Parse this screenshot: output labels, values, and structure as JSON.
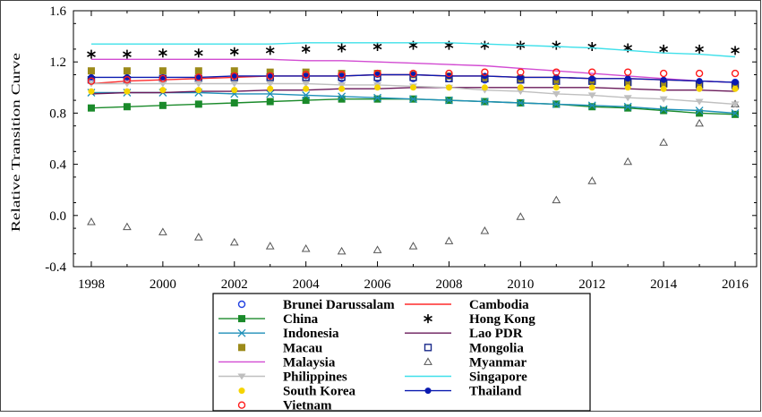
{
  "chart_data": {
    "type": "line",
    "title": "",
    "xlabel": "",
    "ylabel": "Relative Transition Curve",
    "xlim": [
      1997.5,
      2016.6
    ],
    "ylim": [
      -0.4,
      1.6
    ],
    "x_ticks": [
      "1998",
      "2000",
      "2002",
      "2004",
      "2006",
      "2008",
      "2010",
      "2012",
      "2014",
      "2016"
    ],
    "y_ticks": [
      "-0.4",
      "0.0",
      "0.4",
      "0.8",
      "1.2",
      "1.6"
    ],
    "grid": false,
    "legend_position": "bottom",
    "x": [
      1998,
      1999,
      2000,
      2001,
      2002,
      2003,
      2004,
      2005,
      2006,
      2007,
      2008,
      2009,
      2010,
      2011,
      2012,
      2013,
      2014,
      2015,
      2016
    ],
    "series": [
      {
        "name": "Brunei Darussalam",
        "color": "#1f3fe0",
        "marker": "circle-open",
        "line": false,
        "values": [
          1.07,
          1.07,
          1.07,
          1.07,
          1.07,
          1.07,
          1.07,
          1.07,
          1.07,
          1.07,
          1.07,
          1.06,
          1.06,
          1.06,
          1.05,
          1.05,
          1.04,
          1.04,
          1.04
        ]
      },
      {
        "name": "Cambodia",
        "color": "#ff2a2a",
        "marker": "none",
        "line": true,
        "values": [
          1.03,
          1.05,
          1.06,
          1.07,
          1.08,
          1.09,
          1.09,
          1.09,
          1.1,
          1.1,
          1.09,
          1.09,
          1.08,
          1.08,
          1.07,
          1.07,
          1.06,
          1.05,
          1.04
        ]
      },
      {
        "name": "China",
        "color": "#1a8a2a",
        "marker": "square-filled",
        "line": true,
        "values": [
          0.84,
          0.85,
          0.86,
          0.87,
          0.88,
          0.89,
          0.9,
          0.91,
          0.91,
          0.91,
          0.9,
          0.89,
          0.88,
          0.87,
          0.85,
          0.84,
          0.82,
          0.8,
          0.79
        ]
      },
      {
        "name": "Hong Kong",
        "color": "#000000",
        "marker": "asterisk",
        "line": false,
        "values": [
          1.26,
          1.26,
          1.27,
          1.27,
          1.28,
          1.29,
          1.3,
          1.31,
          1.32,
          1.33,
          1.33,
          1.33,
          1.33,
          1.33,
          1.32,
          1.31,
          1.3,
          1.3,
          1.29
        ]
      },
      {
        "name": "Indonesia",
        "color": "#1e8fb8",
        "marker": "x",
        "line": true,
        "values": [
          0.96,
          0.96,
          0.96,
          0.96,
          0.95,
          0.95,
          0.94,
          0.93,
          0.92,
          0.91,
          0.9,
          0.89,
          0.88,
          0.87,
          0.86,
          0.85,
          0.83,
          0.82,
          0.8
        ]
      },
      {
        "name": "Lao PDR",
        "color": "#6a1a5a",
        "marker": "none",
        "line": true,
        "values": [
          0.95,
          0.96,
          0.96,
          0.97,
          0.97,
          0.98,
          0.98,
          0.99,
          0.99,
          1.0,
          1.0,
          1.0,
          1.0,
          1.0,
          1.0,
          0.99,
          0.98,
          0.98,
          0.97
        ]
      },
      {
        "name": "Macau",
        "color": "#9c8a1a",
        "marker": "square-filled",
        "line": false,
        "values": [
          1.13,
          1.13,
          1.13,
          1.13,
          1.13,
          1.12,
          1.12,
          1.11,
          1.11,
          1.1,
          1.09,
          1.08,
          1.07,
          1.06,
          1.05,
          1.04,
          1.03,
          1.02,
          1.01
        ]
      },
      {
        "name": "Mongolia",
        "color": "#1a2a8a",
        "marker": "square-open",
        "line": false,
        "values": [
          1.06,
          1.06,
          1.07,
          1.07,
          1.08,
          1.08,
          1.08,
          1.08,
          1.08,
          1.08,
          1.07,
          1.07,
          1.06,
          1.05,
          1.05,
          1.04,
          1.03,
          1.02,
          1.02
        ]
      },
      {
        "name": "Malaysia",
        "color": "#d24bd2",
        "marker": "none",
        "line": true,
        "values": [
          1.22,
          1.22,
          1.22,
          1.22,
          1.22,
          1.22,
          1.21,
          1.21,
          1.2,
          1.19,
          1.18,
          1.17,
          1.15,
          1.13,
          1.11,
          1.09,
          1.07,
          1.05,
          1.04
        ]
      },
      {
        "name": "Myanmar",
        "color": "#555555",
        "marker": "triangle-open",
        "line": false,
        "values": [
          -0.05,
          -0.09,
          -0.13,
          -0.17,
          -0.21,
          -0.24,
          -0.26,
          -0.28,
          -0.27,
          -0.24,
          -0.2,
          -0.12,
          -0.01,
          0.12,
          0.27,
          0.42,
          0.57,
          0.72,
          0.87
        ]
      },
      {
        "name": "Philippines",
        "color": "#bfbfbf",
        "marker": "triangle-down-filled",
        "line": true,
        "values": [
          1.03,
          1.03,
          1.03,
          1.03,
          1.03,
          1.03,
          1.03,
          1.02,
          1.02,
          1.01,
          1.0,
          0.98,
          0.97,
          0.95,
          0.94,
          0.92,
          0.91,
          0.89,
          0.87
        ]
      },
      {
        "name": "Singapore",
        "color": "#3fe0ea",
        "marker": "none",
        "line": true,
        "values": [
          1.34,
          1.34,
          1.34,
          1.34,
          1.34,
          1.34,
          1.35,
          1.35,
          1.35,
          1.35,
          1.35,
          1.34,
          1.33,
          1.32,
          1.31,
          1.29,
          1.27,
          1.26,
          1.24
        ]
      },
      {
        "name": "South Korea",
        "color": "#f5d400",
        "marker": "circle-filled",
        "line": false,
        "values": [
          0.97,
          0.97,
          0.98,
          0.98,
          0.98,
          0.99,
          0.99,
          0.99,
          1.0,
          1.0,
          1.0,
          1.0,
          1.0,
          1.0,
          1.0,
          1.0,
          0.99,
          0.99,
          0.99
        ]
      },
      {
        "name": "Thailand",
        "color": "#0a1ab0",
        "marker": "circle-filled",
        "line": true,
        "values": [
          1.08,
          1.08,
          1.08,
          1.08,
          1.09,
          1.09,
          1.09,
          1.09,
          1.1,
          1.1,
          1.09,
          1.09,
          1.08,
          1.08,
          1.07,
          1.07,
          1.06,
          1.05,
          1.04
        ]
      },
      {
        "name": "Vietnam",
        "color": "#ff1a1a",
        "marker": "circle-open",
        "line": false,
        "values": [
          1.05,
          1.06,
          1.07,
          1.08,
          1.09,
          1.09,
          1.1,
          1.1,
          1.11,
          1.11,
          1.11,
          1.12,
          1.12,
          1.12,
          1.12,
          1.12,
          1.11,
          1.11,
          1.11
        ]
      }
    ]
  }
}
